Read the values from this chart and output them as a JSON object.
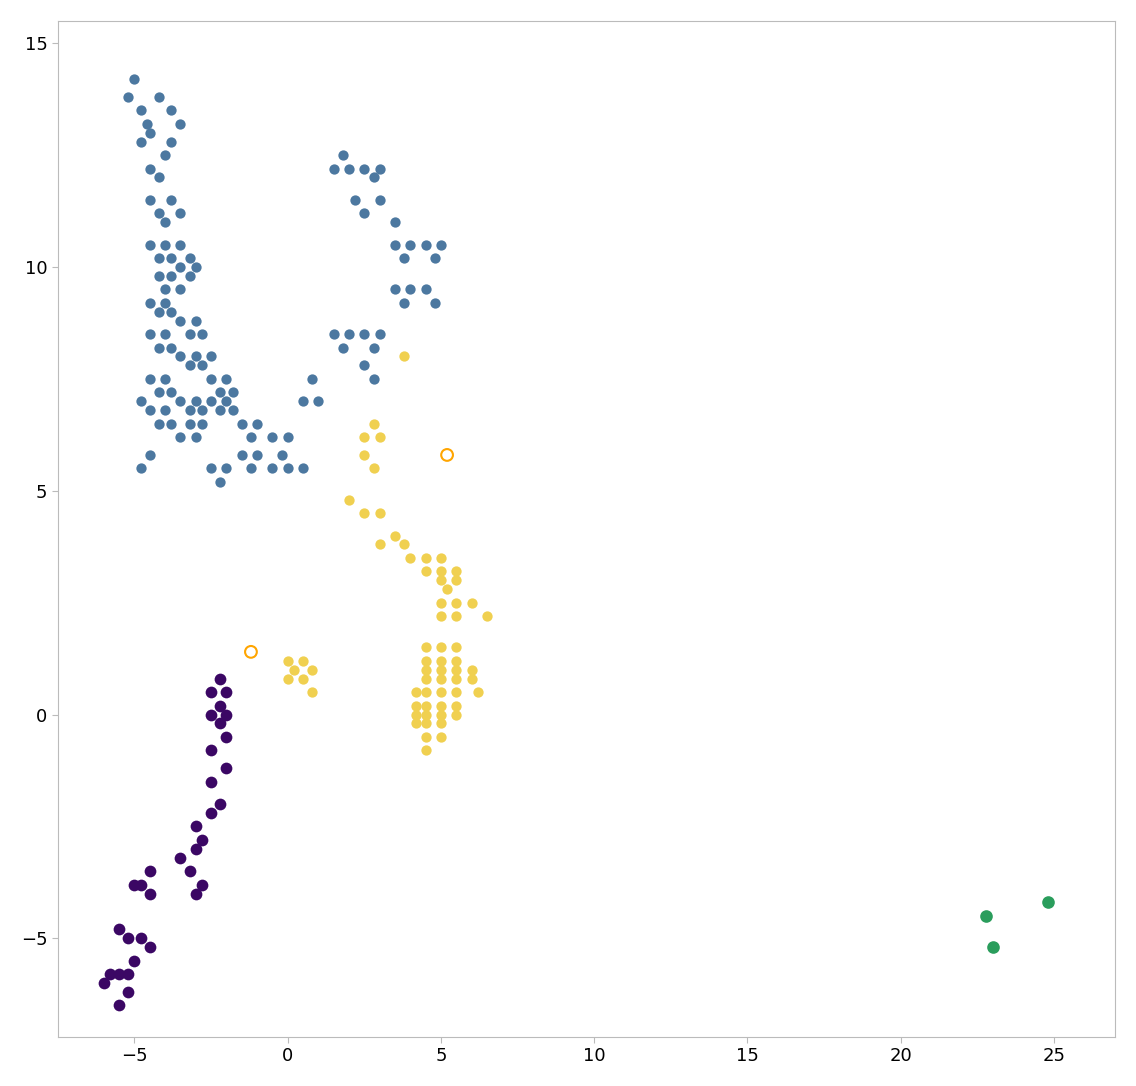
{
  "blue_points": [
    [
      -5.0,
      14.2
    ],
    [
      -5.2,
      13.8
    ],
    [
      -4.8,
      13.5
    ],
    [
      -4.6,
      13.2
    ],
    [
      -4.5,
      13.0
    ],
    [
      -4.8,
      12.8
    ],
    [
      -4.2,
      13.8
    ],
    [
      -3.8,
      13.5
    ],
    [
      -3.5,
      13.2
    ],
    [
      -3.8,
      12.8
    ],
    [
      -4.5,
      12.2
    ],
    [
      -4.2,
      12.0
    ],
    [
      -4.0,
      12.5
    ],
    [
      -4.5,
      11.5
    ],
    [
      -4.2,
      11.2
    ],
    [
      -4.0,
      11.0
    ],
    [
      -3.8,
      11.5
    ],
    [
      -3.5,
      11.2
    ],
    [
      -4.5,
      10.5
    ],
    [
      -4.2,
      10.2
    ],
    [
      -4.0,
      10.5
    ],
    [
      -3.8,
      10.2
    ],
    [
      -3.5,
      10.5
    ],
    [
      -4.2,
      9.8
    ],
    [
      -4.0,
      9.5
    ],
    [
      -3.8,
      9.8
    ],
    [
      -3.5,
      9.5
    ],
    [
      -3.2,
      9.8
    ],
    [
      -3.0,
      10.0
    ],
    [
      -3.5,
      10.0
    ],
    [
      -3.2,
      10.2
    ],
    [
      -4.5,
      9.2
    ],
    [
      -4.2,
      9.0
    ],
    [
      -4.0,
      9.2
    ],
    [
      -3.8,
      9.0
    ],
    [
      -3.5,
      8.8
    ],
    [
      -3.2,
      8.5
    ],
    [
      -3.0,
      8.8
    ],
    [
      -2.8,
      8.5
    ],
    [
      -4.5,
      8.5
    ],
    [
      -4.2,
      8.2
    ],
    [
      -4.0,
      8.5
    ],
    [
      -3.8,
      8.2
    ],
    [
      -3.5,
      8.0
    ],
    [
      -3.2,
      7.8
    ],
    [
      -3.0,
      8.0
    ],
    [
      -2.8,
      7.8
    ],
    [
      -2.5,
      8.0
    ],
    [
      -4.5,
      7.5
    ],
    [
      -4.2,
      7.2
    ],
    [
      -4.0,
      7.5
    ],
    [
      -3.8,
      7.2
    ],
    [
      -3.5,
      7.0
    ],
    [
      -3.2,
      6.8
    ],
    [
      -3.0,
      7.0
    ],
    [
      -2.8,
      6.8
    ],
    [
      -4.8,
      7.0
    ],
    [
      -4.5,
      6.8
    ],
    [
      -4.2,
      6.5
    ],
    [
      -4.0,
      6.8
    ],
    [
      -3.8,
      6.5
    ],
    [
      -3.5,
      6.2
    ],
    [
      -3.2,
      6.5
    ],
    [
      -3.0,
      6.2
    ],
    [
      -2.8,
      6.5
    ],
    [
      -2.5,
      7.5
    ],
    [
      -2.2,
      7.2
    ],
    [
      -2.0,
      7.5
    ],
    [
      -1.8,
      7.2
    ],
    [
      -2.5,
      7.0
    ],
    [
      -2.2,
      6.8
    ],
    [
      -2.0,
      7.0
    ],
    [
      -1.8,
      6.8
    ],
    [
      -4.5,
      5.8
    ],
    [
      -4.8,
      5.5
    ],
    [
      -2.5,
      5.5
    ],
    [
      -2.2,
      5.2
    ],
    [
      -2.0,
      5.5
    ],
    [
      -1.5,
      6.5
    ],
    [
      -1.2,
      6.2
    ],
    [
      -1.0,
      6.5
    ],
    [
      -1.5,
      5.8
    ],
    [
      -1.2,
      5.5
    ],
    [
      -1.0,
      5.8
    ],
    [
      -0.5,
      6.2
    ],
    [
      -0.2,
      5.8
    ],
    [
      0.0,
      6.2
    ],
    [
      -0.5,
      5.5
    ],
    [
      0.0,
      5.5
    ],
    [
      0.5,
      5.5
    ],
    [
      0.5,
      7.0
    ],
    [
      0.8,
      7.5
    ],
    [
      1.0,
      7.0
    ],
    [
      1.5,
      8.5
    ],
    [
      1.8,
      8.2
    ],
    [
      2.0,
      8.5
    ],
    [
      2.5,
      8.5
    ],
    [
      2.8,
      8.2
    ],
    [
      3.0,
      8.5
    ],
    [
      2.5,
      7.8
    ],
    [
      2.8,
      7.5
    ],
    [
      1.5,
      12.2
    ],
    [
      1.8,
      12.5
    ],
    [
      2.0,
      12.2
    ],
    [
      2.5,
      12.2
    ],
    [
      2.8,
      12.0
    ],
    [
      3.0,
      12.2
    ],
    [
      2.2,
      11.5
    ],
    [
      2.5,
      11.2
    ],
    [
      3.0,
      11.5
    ],
    [
      3.5,
      11.0
    ],
    [
      3.5,
      10.5
    ],
    [
      3.8,
      10.2
    ],
    [
      4.0,
      10.5
    ],
    [
      4.5,
      10.5
    ],
    [
      4.8,
      10.2
    ],
    [
      5.0,
      10.5
    ],
    [
      3.5,
      9.5
    ],
    [
      3.8,
      9.2
    ],
    [
      4.0,
      9.5
    ],
    [
      4.5,
      9.5
    ],
    [
      4.8,
      9.2
    ]
  ],
  "yellow_points": [
    [
      2.5,
      6.2
    ],
    [
      2.8,
      6.5
    ],
    [
      3.0,
      6.2
    ],
    [
      2.5,
      5.8
    ],
    [
      2.8,
      5.5
    ],
    [
      2.0,
      4.8
    ],
    [
      2.5,
      4.5
    ],
    [
      3.0,
      4.5
    ],
    [
      3.0,
      3.8
    ],
    [
      3.5,
      4.0
    ],
    [
      3.8,
      3.8
    ],
    [
      4.0,
      3.5
    ],
    [
      4.5,
      3.5
    ],
    [
      5.0,
      3.5
    ],
    [
      4.5,
      3.2
    ],
    [
      5.0,
      3.2
    ],
    [
      5.5,
      3.2
    ],
    [
      5.0,
      3.0
    ],
    [
      5.2,
      2.8
    ],
    [
      5.5,
      3.0
    ],
    [
      5.0,
      2.5
    ],
    [
      5.5,
      2.5
    ],
    [
      6.0,
      2.5
    ],
    [
      5.0,
      2.2
    ],
    [
      5.5,
      2.2
    ],
    [
      6.5,
      2.2
    ],
    [
      4.5,
      1.5
    ],
    [
      5.0,
      1.5
    ],
    [
      5.5,
      1.5
    ],
    [
      4.5,
      1.2
    ],
    [
      5.0,
      1.2
    ],
    [
      5.5,
      1.2
    ],
    [
      4.5,
      1.0
    ],
    [
      5.0,
      1.0
    ],
    [
      5.5,
      1.0
    ],
    [
      6.0,
      1.0
    ],
    [
      4.5,
      0.8
    ],
    [
      5.0,
      0.8
    ],
    [
      5.5,
      0.8
    ],
    [
      6.0,
      0.8
    ],
    [
      4.2,
      0.5
    ],
    [
      4.5,
      0.5
    ],
    [
      5.0,
      0.5
    ],
    [
      5.5,
      0.5
    ],
    [
      4.2,
      0.2
    ],
    [
      4.5,
      0.2
    ],
    [
      5.0,
      0.2
    ],
    [
      5.5,
      0.2
    ],
    [
      4.2,
      0.0
    ],
    [
      4.5,
      0.0
    ],
    [
      5.0,
      0.0
    ],
    [
      5.5,
      0.0
    ],
    [
      4.2,
      -0.2
    ],
    [
      4.5,
      -0.2
    ],
    [
      5.0,
      -0.2
    ],
    [
      4.5,
      -0.5
    ],
    [
      5.0,
      -0.5
    ],
    [
      4.5,
      -0.8
    ],
    [
      3.8,
      8.0
    ],
    [
      0.0,
      1.2
    ],
    [
      0.2,
      1.0
    ],
    [
      0.5,
      1.2
    ],
    [
      0.8,
      1.0
    ],
    [
      0.0,
      0.8
    ],
    [
      0.5,
      0.8
    ],
    [
      0.8,
      0.5
    ],
    [
      6.2,
      0.5
    ]
  ],
  "purple_points": [
    [
      -2.2,
      0.8
    ],
    [
      -2.0,
      0.5
    ],
    [
      -2.5,
      0.5
    ],
    [
      -2.2,
      0.2
    ],
    [
      -2.0,
      0.0
    ],
    [
      -2.5,
      0.0
    ],
    [
      -2.2,
      -0.2
    ],
    [
      -2.0,
      -0.5
    ],
    [
      -2.5,
      -0.8
    ],
    [
      -2.0,
      -1.2
    ],
    [
      -2.5,
      -1.5
    ],
    [
      -2.2,
      -2.0
    ],
    [
      -2.5,
      -2.2
    ],
    [
      -3.0,
      -2.5
    ],
    [
      -2.8,
      -2.8
    ],
    [
      -3.0,
      -3.0
    ],
    [
      -3.5,
      -3.2
    ],
    [
      -3.2,
      -3.5
    ],
    [
      -2.8,
      -3.8
    ],
    [
      -3.0,
      -4.0
    ],
    [
      -4.5,
      -3.5
    ],
    [
      -4.8,
      -3.8
    ],
    [
      -4.5,
      -4.0
    ],
    [
      -5.0,
      -3.8
    ],
    [
      -5.5,
      -4.8
    ],
    [
      -5.2,
      -5.0
    ],
    [
      -4.8,
      -5.0
    ],
    [
      -4.5,
      -5.2
    ],
    [
      -5.0,
      -5.5
    ],
    [
      -5.5,
      -5.8
    ],
    [
      -5.2,
      -5.8
    ],
    [
      -5.8,
      -5.8
    ],
    [
      -6.0,
      -6.0
    ],
    [
      -5.2,
      -6.2
    ],
    [
      -5.5,
      -6.5
    ]
  ],
  "green_points": [
    [
      22.8,
      -4.5
    ],
    [
      23.0,
      -5.2
    ],
    [
      24.8,
      -4.2
    ]
  ],
  "outlier1": [
    5.2,
    5.8
  ],
  "outlier2": [
    -1.2,
    1.4
  ],
  "blue_color": "#4c78a0",
  "yellow_color": "#f0d050",
  "purple_color": "#3b0764",
  "green_color": "#2a9d5c",
  "outlier_color": "orange",
  "background_color": "#ffffff",
  "xlim": [
    -7.5,
    27
  ],
  "ylim": [
    -7.2,
    15.5
  ],
  "xticks": [
    -5,
    0,
    5,
    10,
    15,
    20,
    25
  ],
  "yticks": [
    -5,
    0,
    5,
    10,
    15
  ],
  "marker_size": 55
}
